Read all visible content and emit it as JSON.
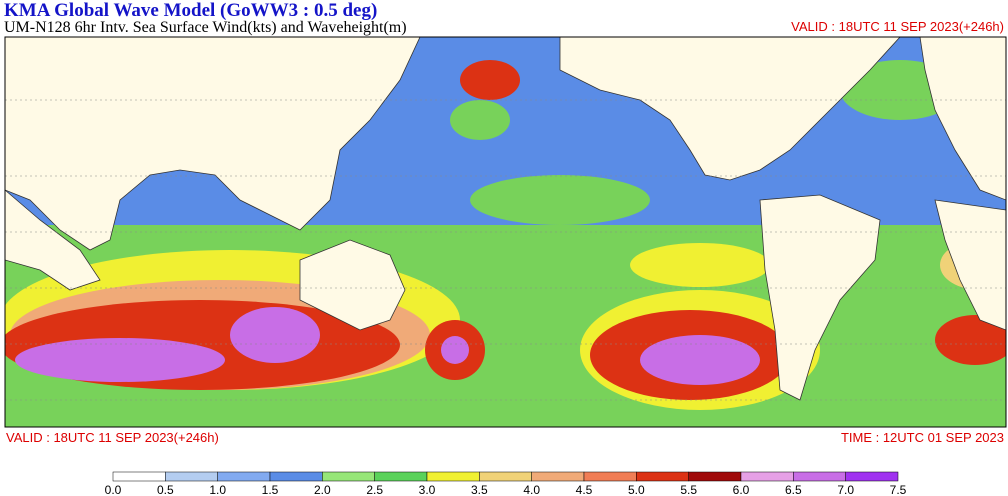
{
  "header": {
    "title": "KMA  Global Wave Model (GoWW3 : 0.5 deg)",
    "subtitle": "UM-N128  6hr Intv. Sea Surface Wind(kts) and Waveheight(m)",
    "valid_top": "VALID : 18UTC 11 SEP 2023(+246h)"
  },
  "footer": {
    "valid": "VALID : 18UTC 11 SEP 2023(+246h)",
    "time": "TIME : 12UTC 01 SEP 2023"
  },
  "colorbar": {
    "labels": [
      "0.0",
      "0.5",
      "1.0",
      "1.5",
      "2.0",
      "2.5",
      "3.0",
      "3.5",
      "4.0",
      "4.5",
      "5.0",
      "5.5",
      "6.0",
      "6.5",
      "7.0",
      "7.5"
    ],
    "colors": [
      "#ffffff",
      "#b4cdf0",
      "#82aaf0",
      "#5a8ce6",
      "#96e678",
      "#5ad25a",
      "#f0f032",
      "#f0d278",
      "#f0aa78",
      "#f07d55",
      "#dc3214",
      "#a00a0a",
      "#e6a0e6",
      "#c86ee6",
      "#a032f0"
    ]
  }
}
